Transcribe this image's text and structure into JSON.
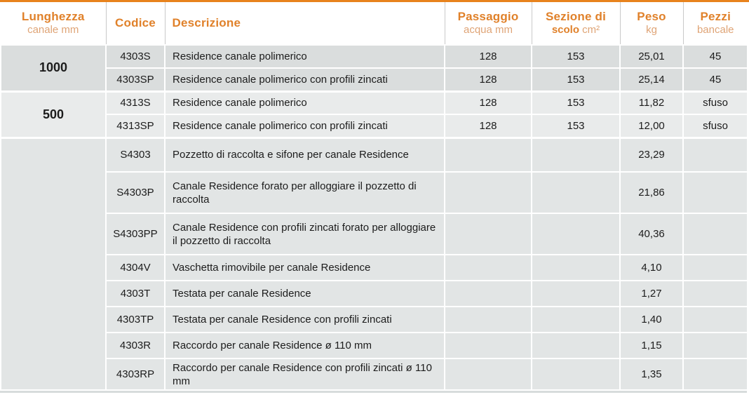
{
  "colors": {
    "accent_orange": "#e8831d",
    "header_bold_orange": "#e0812a",
    "header_light_orange": "#dfa476",
    "row_dark_gray": "#dadddd",
    "row_light_gray": "#e9ebeb",
    "row_mid_gray": "#e2e5e5"
  },
  "header": {
    "columns": [
      {
        "bold": "Lunghezza",
        "light": "canale mm"
      },
      {
        "bold": "Codice",
        "light": ""
      },
      {
        "bold": "Descrizione",
        "light": ""
      },
      {
        "bold": "Passaggio",
        "light": "acqua mm"
      },
      {
        "bold": "Sezione di",
        "bold2": "scolo",
        "light": "cm²"
      },
      {
        "bold": "Peso",
        "light": "kg"
      },
      {
        "bold": "Pezzi",
        "light": "bancale"
      }
    ]
  },
  "groups": [
    {
      "length": "1000",
      "rows": [
        {
          "code": "4303S",
          "desc": "Residence canale polimerico",
          "passaggio": "128",
          "sezione": "153",
          "peso": "25,01",
          "pezzi": "45"
        },
        {
          "code": "4303SP",
          "desc": "Residence canale polimerico con profili zincati",
          "passaggio": "128",
          "sezione": "153",
          "peso": "25,14",
          "pezzi": "45"
        }
      ]
    },
    {
      "length": "500",
      "rows": [
        {
          "code": "4313S",
          "desc": "Residence canale polimerico",
          "passaggio": "128",
          "sezione": "153",
          "peso": "11,82",
          "pezzi": "sfuso"
        },
        {
          "code": "4313SP",
          "desc": "Residence canale polimerico con profili zincati",
          "passaggio": "128",
          "sezione": "153",
          "peso": "12,00",
          "pezzi": "sfuso"
        }
      ]
    },
    {
      "length": "",
      "rows": [
        {
          "code": "S4303",
          "desc": "Pozzetto di raccolta e sifone per canale Residence",
          "passaggio": "",
          "sezione": "",
          "peso": "23,29",
          "pezzi": ""
        },
        {
          "code": "S4303P",
          "desc": "Canale Residence forato per alloggiare il pozzetto di raccolta",
          "passaggio": "",
          "sezione": "",
          "peso": "21,86",
          "pezzi": ""
        },
        {
          "code": "S4303PP",
          "desc": "Canale Residence con profili zincati forato per alloggiare il pozzetto di raccolta",
          "passaggio": "",
          "sezione": "",
          "peso": "40,36",
          "pezzi": ""
        },
        {
          "code": "4304V",
          "desc": "Vaschetta rimovibile per canale Residence",
          "passaggio": "",
          "sezione": "",
          "peso": "4,10",
          "pezzi": ""
        },
        {
          "code": "4303T",
          "desc": "Testata per canale Residence",
          "passaggio": "",
          "sezione": "",
          "peso": "1,27",
          "pezzi": ""
        },
        {
          "code": "4303TP",
          "desc": "Testata per canale Residence con profili zincati",
          "passaggio": "",
          "sezione": "",
          "peso": "1,40",
          "pezzi": ""
        },
        {
          "code": "4303R",
          "desc": "Raccordo per canale Residence ø 110 mm",
          "passaggio": "",
          "sezione": "",
          "peso": "1,15",
          "pezzi": ""
        },
        {
          "code": "4303RP",
          "desc": "Raccordo per canale Residence con profili zincati ø 110 mm",
          "passaggio": "",
          "sezione": "",
          "peso": "1,35",
          "pezzi": ""
        }
      ]
    }
  ]
}
